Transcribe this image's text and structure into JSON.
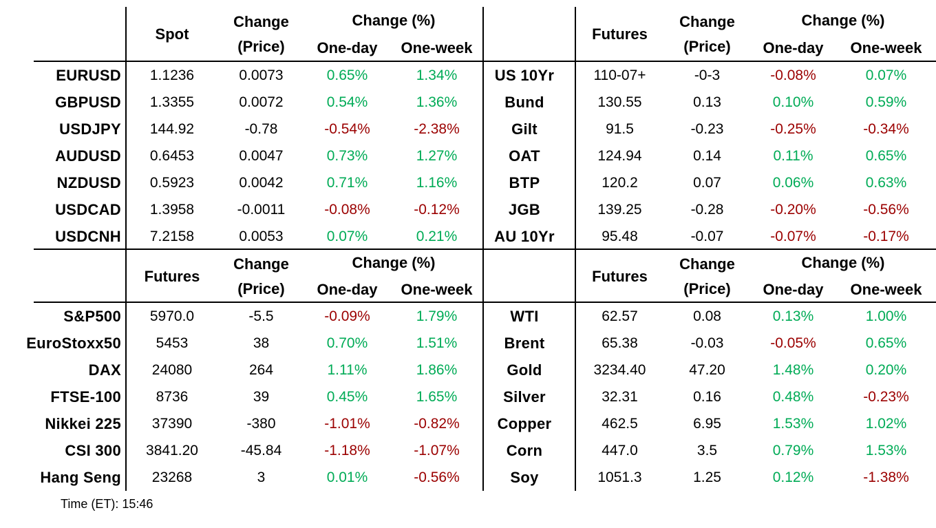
{
  "palette": {
    "positive": "#00AB56",
    "negative": "#9B0000",
    "text": "#000000",
    "background": "#FFFFFF",
    "border": "#000000"
  },
  "footer": {
    "time_label": "Time (ET): 15:46"
  },
  "tables": [
    {
      "id": "fx-spot",
      "quadrant": "top-left",
      "price_header": "Spot",
      "change_header_line1": "Change",
      "change_header_line2": "(Price)",
      "pct_header": "Change (%)",
      "one_day_header": "One-day",
      "one_week_header": "One-week",
      "rows": [
        {
          "label": "EURUSD",
          "price": "1.1236",
          "change": "0.0073",
          "one_day": "0.65%",
          "one_week": "1.34%"
        },
        {
          "label": "GBPUSD",
          "price": "1.3355",
          "change": "0.0072",
          "one_day": "0.54%",
          "one_week": "1.36%"
        },
        {
          "label": "USDJPY",
          "price": "144.92",
          "change": "-0.78",
          "one_day": "-0.54%",
          "one_week": "-2.38%"
        },
        {
          "label": "AUDUSD",
          "price": "0.6453",
          "change": "0.0047",
          "one_day": "0.73%",
          "one_week": "1.27%"
        },
        {
          "label": "NZDUSD",
          "price": "0.5923",
          "change": "0.0042",
          "one_day": "0.71%",
          "one_week": "1.16%"
        },
        {
          "label": "USDCAD",
          "price": "1.3958",
          "change": "-0.0011",
          "one_day": "-0.08%",
          "one_week": "-0.12%"
        },
        {
          "label": "USDCNH",
          "price": "7.2158",
          "change": "0.0053",
          "one_day": "0.07%",
          "one_week": "0.21%"
        }
      ]
    },
    {
      "id": "bond-futures",
      "quadrant": "top-right",
      "price_header": "Futures",
      "change_header_line1": "Change",
      "change_header_line2": "(Price)",
      "pct_header": "Change (%)",
      "one_day_header": "One-day",
      "one_week_header": "One-week",
      "rows": [
        {
          "label": "US 10Yr",
          "price": "110-07+",
          "change": "-0-3",
          "one_day": "-0.08%",
          "one_week": "0.07%"
        },
        {
          "label": "Bund",
          "price": "130.55",
          "change": "0.13",
          "one_day": "0.10%",
          "one_week": "0.59%"
        },
        {
          "label": "Gilt",
          "price": "91.5",
          "change": "-0.23",
          "one_day": "-0.25%",
          "one_week": "-0.34%"
        },
        {
          "label": "OAT",
          "price": "124.94",
          "change": "0.14",
          "one_day": "0.11%",
          "one_week": "0.65%"
        },
        {
          "label": "BTP",
          "price": "120.2",
          "change": "0.07",
          "one_day": "0.06%",
          "one_week": "0.63%"
        },
        {
          "label": "JGB",
          "price": "139.25",
          "change": "-0.28",
          "one_day": "-0.20%",
          "one_week": "-0.56%"
        },
        {
          "label": "AU 10Yr",
          "price": "95.48",
          "change": "-0.07",
          "one_day": "-0.07%",
          "one_week": "-0.17%"
        }
      ]
    },
    {
      "id": "equity-futures",
      "quadrant": "bottom-left",
      "price_header": "Futures",
      "change_header_line1": "Change",
      "change_header_line2": "(Price)",
      "pct_header": "Change (%)",
      "one_day_header": "One-day",
      "one_week_header": "One-week",
      "rows": [
        {
          "label": "S&P500",
          "price": "5970.0",
          "change": "-5.5",
          "one_day": "-0.09%",
          "one_week": "1.79%"
        },
        {
          "label": "EuroStoxx50",
          "price": "5453",
          "change": "38",
          "one_day": "0.70%",
          "one_week": "1.51%"
        },
        {
          "label": "DAX",
          "price": "24080",
          "change": "264",
          "one_day": "1.11%",
          "one_week": "1.86%"
        },
        {
          "label": "FTSE-100",
          "price": "8736",
          "change": "39",
          "one_day": "0.45%",
          "one_week": "1.65%"
        },
        {
          "label": "Nikkei 225",
          "price": "37390",
          "change": "-380",
          "one_day": "-1.01%",
          "one_week": "-0.82%"
        },
        {
          "label": "CSI 300",
          "price": "3841.20",
          "change": "-45.84",
          "one_day": "-1.18%",
          "one_week": "-1.07%"
        },
        {
          "label": "Hang Seng",
          "price": "23268",
          "change": "3",
          "one_day": "0.01%",
          "one_week": "-0.56%"
        }
      ]
    },
    {
      "id": "commodity-futures",
      "quadrant": "bottom-right",
      "price_header": "Futures",
      "change_header_line1": "Change",
      "change_header_line2": "(Price)",
      "pct_header": "Change (%)",
      "one_day_header": "One-day",
      "one_week_header": "One-week",
      "rows": [
        {
          "label": "WTI",
          "price": "62.57",
          "change": "0.08",
          "one_day": "0.13%",
          "one_week": "1.00%"
        },
        {
          "label": "Brent",
          "price": "65.38",
          "change": "-0.03",
          "one_day": "-0.05%",
          "one_week": "0.65%"
        },
        {
          "label": "Gold",
          "price": "3234.40",
          "change": "47.20",
          "one_day": "1.48%",
          "one_week": "0.20%"
        },
        {
          "label": "Silver",
          "price": "32.31",
          "change": "0.16",
          "one_day": "0.48%",
          "one_week": "-0.23%"
        },
        {
          "label": "Copper",
          "price": "462.5",
          "change": "6.95",
          "one_day": "1.53%",
          "one_week": "1.02%"
        },
        {
          "label": "Corn",
          "price": "447.0",
          "change": "3.5",
          "one_day": "0.79%",
          "one_week": "1.53%"
        },
        {
          "label": "Soy",
          "price": "1051.3",
          "change": "1.25",
          "one_day": "0.12%",
          "one_week": "-1.38%"
        }
      ]
    }
  ]
}
